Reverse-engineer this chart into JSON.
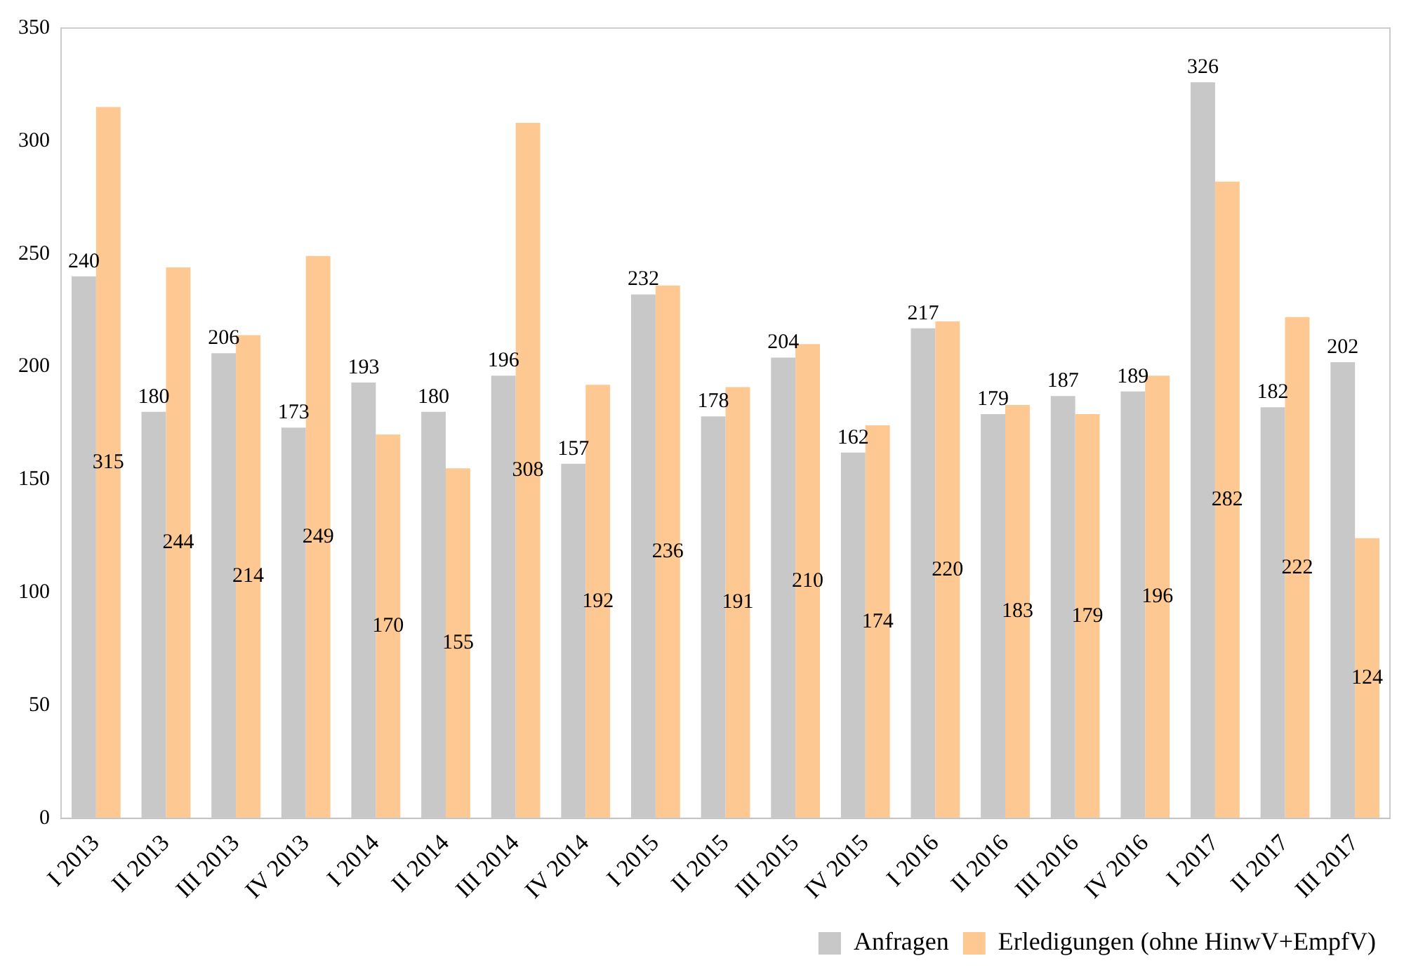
{
  "chart_data": {
    "type": "bar",
    "categories": [
      "I 2013",
      "II 2013",
      "III 2013",
      "IV 2013",
      "I 2014",
      "II 2014",
      "III 2014",
      "IV 2014",
      "I 2015",
      "II 2015",
      "III 2015",
      "IV 2015",
      "I 2016",
      "II 2016",
      "III 2016",
      "IV 2016",
      "I 2017",
      "II 2017",
      "III 2017"
    ],
    "series": [
      {
        "name": "Anfragen",
        "color": "#c8c8c8",
        "values": [
          240,
          180,
          206,
          173,
          193,
          180,
          196,
          157,
          232,
          178,
          204,
          162,
          217,
          179,
          187,
          189,
          326,
          182,
          202
        ]
      },
      {
        "name": "Erledigungen (ohne HinwV+EmpfV)",
        "color": "#fdc891",
        "values": [
          315,
          244,
          214,
          249,
          170,
          155,
          308,
          192,
          236,
          191,
          210,
          174,
          220,
          183,
          179,
          196,
          282,
          222,
          124
        ]
      }
    ],
    "ylim": [
      0,
      350
    ],
    "yticks": [
      0,
      50,
      100,
      150,
      200,
      250,
      300,
      350
    ],
    "grid": false,
    "legend": "bottom",
    "data_labels": true
  }
}
